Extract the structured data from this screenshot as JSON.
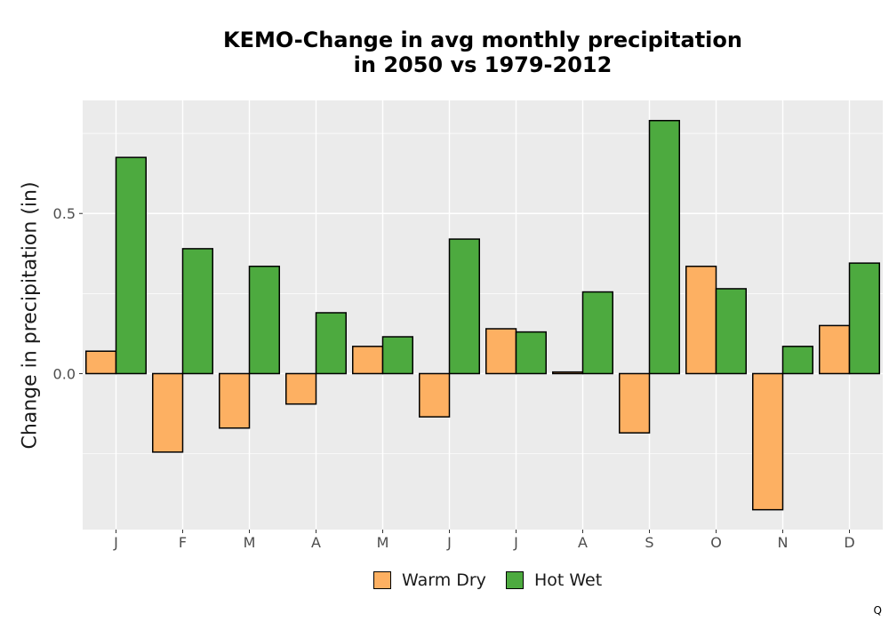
{
  "chart_data": {
    "type": "bar",
    "title": "KEMO-Change in avg monthly precipitation",
    "subtitle": "in 2050 vs 1979-2012",
    "xlabel": "",
    "ylabel": "Change in precipitation (in)",
    "categories": [
      "J",
      "F",
      "M",
      "A",
      "M",
      "J",
      "J",
      "A",
      "S",
      "O",
      "N",
      "D"
    ],
    "series": [
      {
        "name": "Warm Dry",
        "color": "#FDB062",
        "values": [
          0.07,
          -0.245,
          -0.17,
          -0.095,
          0.085,
          -0.135,
          0.14,
          0.005,
          -0.185,
          0.335,
          -0.425,
          0.15
        ]
      },
      {
        "name": "Hot Wet",
        "color": "#4DAA3F",
        "values": [
          0.675,
          0.39,
          0.335,
          0.19,
          0.115,
          0.42,
          0.13,
          0.255,
          0.79,
          0.265,
          0.085,
          0.345
        ]
      }
    ],
    "yticks": [
      0.0,
      0.5
    ],
    "ytick_labels": [
      "0.0",
      "0.5"
    ],
    "ylim": [
      -0.487,
      0.853
    ],
    "grid": true,
    "panel_background": "#EBEBEB",
    "legend_position": "bottom"
  },
  "corner_mark": "Q"
}
